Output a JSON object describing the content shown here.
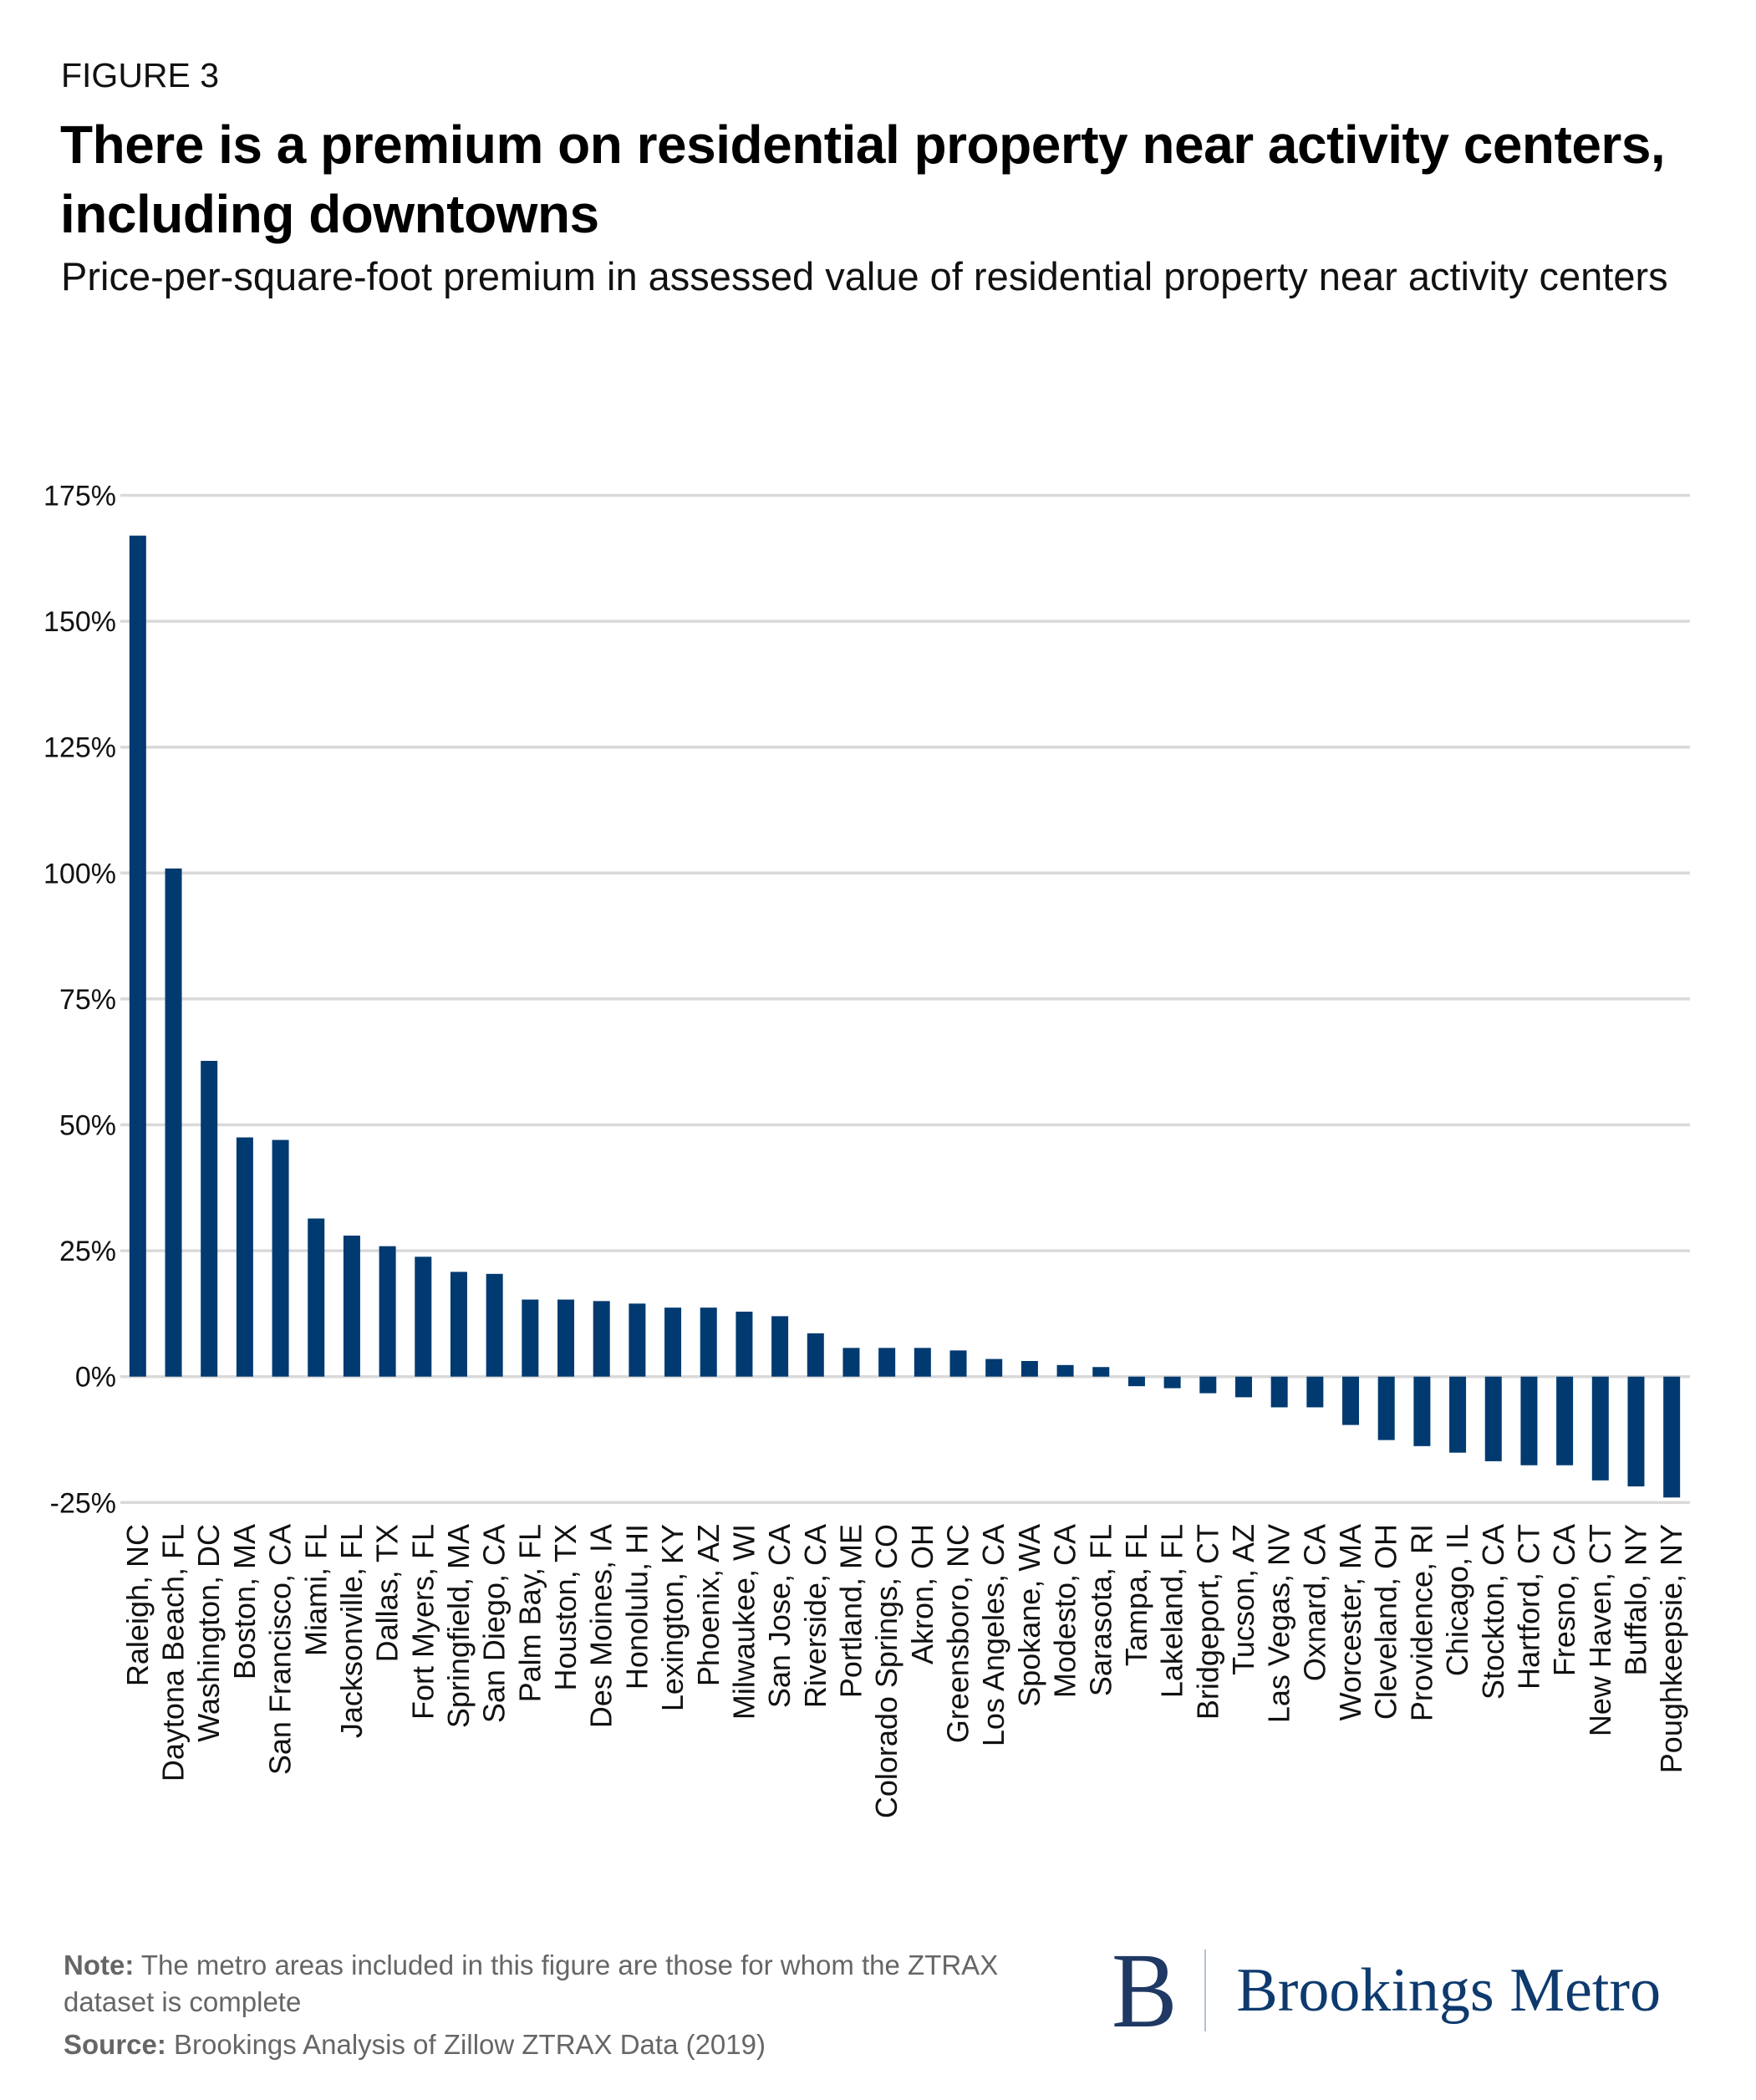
{
  "header": {
    "figure_label": "FIGURE 3",
    "title": "There is a premium on residential property near activity centers, including downtowns",
    "subtitle": "Price-per-square-foot premium in assessed value of residential property near activity centers"
  },
  "footer": {
    "note_label": "Note:",
    "note_text": " The metro areas included in this figure are those for whom the ZTRAX dataset is complete",
    "source_label": "Source:",
    "source_text": " Brookings Analysis of Zillow ZTRAX Data (2019)",
    "logo_mark": "B",
    "logo_text": "Brookings Metro"
  },
  "colors": {
    "bar": "#003a70",
    "grid": "#d9d9d9",
    "logo_mark": "#1f3864",
    "logo_text": "#0e3a6e",
    "footer_text": "#666666"
  },
  "chart_data": {
    "type": "bar",
    "title": "There is a premium on residential property near activity centers, including downtowns",
    "subtitle": "Price-per-square-foot premium in assessed value of residential property near activity centers",
    "xlabel": "",
    "ylabel": "",
    "ylim": [
      -25,
      175
    ],
    "yticks": [
      -25,
      0,
      25,
      50,
      75,
      100,
      125,
      150,
      175
    ],
    "ytick_labels": [
      "-25%",
      "0%",
      "25%",
      "50%",
      "75%",
      "100%",
      "125%",
      "150%",
      "175%"
    ],
    "grid": true,
    "legend": "none",
    "unit": "%",
    "categories": [
      "Raleigh, NC",
      "Daytona Beach, FL",
      "Washington, DC",
      "Boston, MA",
      "San Francisco, CA",
      "Miami, FL",
      "Jacksonville, FL",
      "Dallas, TX",
      "Fort Myers, FL",
      "Springfield, MA",
      "San Diego, CA",
      "Palm Bay, FL",
      "Houston, TX",
      "Des Moines, IA",
      "Honolulu, HI",
      "Lexington, KY",
      "Phoenix, AZ",
      "Milwaukee, WI",
      "San Jose, CA",
      "Riverside, CA",
      "Portland, ME",
      "Colorado Springs, CO",
      "Akron, OH",
      "Greensboro, NC",
      "Los Angeles, CA",
      "Spokane, WA",
      "Modesto, CA",
      "Sarasota, FL",
      "Tampa, FL",
      "Lakeland, FL",
      "Bridgeport, CT",
      "Tucson, AZ",
      "Las Vegas, NV",
      "Oxnard, CA",
      "Worcester, MA",
      "Cleveland, OH",
      "Providence, RI",
      "Chicago, IL",
      "Stockton, CA",
      "Hartford, CT",
      "Fresno, CA",
      "New Haven, CT",
      "Buffalo, NY",
      "Poughkeepsie, NY"
    ],
    "values": [
      167.0,
      100.9,
      62.7,
      47.5,
      47.0,
      31.4,
      28.0,
      25.9,
      23.8,
      20.8,
      20.4,
      15.3,
      15.3,
      15.0,
      14.5,
      13.7,
      13.7,
      12.9,
      12.0,
      8.6,
      5.7,
      5.7,
      5.7,
      5.2,
      3.5,
      3.1,
      2.3,
      1.9,
      -1.9,
      -2.3,
      -3.3,
      -4.1,
      -6.1,
      -6.1,
      -9.6,
      -12.6,
      -13.8,
      -15.1,
      -16.8,
      -17.6,
      -17.6,
      -20.6,
      -21.8,
      -24.0
    ]
  }
}
